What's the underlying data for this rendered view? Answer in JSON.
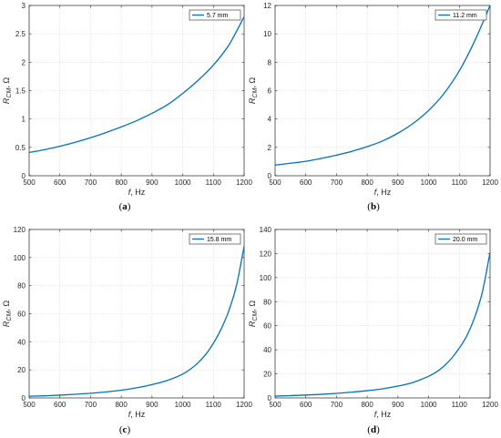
{
  "colors": {
    "series": "#0072BD",
    "axis": "#262626",
    "grid": "#dcdcdc"
  },
  "chart_data": [
    {
      "type": "line",
      "panel_label": "(a)",
      "xlabel": "f, Hz",
      "ylabel": "R_CM, Ω",
      "xlim": [
        500,
        1200
      ],
      "ylim": [
        0,
        3
      ],
      "xticks": [
        500,
        600,
        700,
        800,
        900,
        1000,
        1100,
        1200
      ],
      "yticks": [
        0,
        0.5,
        1,
        1.5,
        2,
        2.5,
        3
      ],
      "grid": true,
      "legend_position": "top-right",
      "series": [
        {
          "name": "5.7 mm",
          "x": [
            500,
            550,
            600,
            650,
            700,
            750,
            800,
            850,
            900,
            950,
            1000,
            1050,
            1100,
            1150,
            1200
          ],
          "y": [
            0.41,
            0.46,
            0.52,
            0.59,
            0.67,
            0.76,
            0.86,
            0.97,
            1.1,
            1.25,
            1.45,
            1.68,
            1.95,
            2.3,
            2.8
          ]
        }
      ]
    },
    {
      "type": "line",
      "panel_label": "(b)",
      "xlabel": "f, Hz",
      "ylabel": "R_CM, Ω",
      "xlim": [
        500,
        1200
      ],
      "ylim": [
        0,
        12
      ],
      "xticks": [
        500,
        600,
        700,
        800,
        900,
        1000,
        1100,
        1200
      ],
      "yticks": [
        0,
        2,
        4,
        6,
        8,
        10,
        12
      ],
      "grid": true,
      "legend_position": "top-right",
      "series": [
        {
          "name": "11.2 mm",
          "x": [
            500,
            550,
            600,
            650,
            700,
            750,
            800,
            850,
            900,
            950,
            1000,
            1050,
            1100,
            1150,
            1200
          ],
          "y": [
            0.75,
            0.88,
            1.02,
            1.22,
            1.45,
            1.72,
            2.05,
            2.45,
            3.0,
            3.7,
            4.6,
            5.8,
            7.4,
            9.5,
            12.0
          ]
        }
      ]
    },
    {
      "type": "line",
      "panel_label": "(c)",
      "xlabel": "f, Hz",
      "ylabel": "R_CM, Ω",
      "xlim": [
        500,
        1200
      ],
      "ylim": [
        0,
        120
      ],
      "xticks": [
        500,
        600,
        700,
        800,
        900,
        1000,
        1100,
        1200
      ],
      "yticks": [
        0,
        20,
        40,
        60,
        80,
        100,
        120
      ],
      "grid": true,
      "legend_position": "top-right",
      "series": [
        {
          "name": "15.8 mm",
          "x": [
            500,
            550,
            600,
            650,
            700,
            750,
            800,
            850,
            900,
            950,
            1000,
            1025,
            1050,
            1075,
            1100,
            1125,
            1150,
            1175,
            1200
          ],
          "y": [
            1.2,
            1.5,
            2.0,
            2.6,
            3.3,
            4.3,
            5.5,
            7.2,
            9.5,
            12.5,
            17.0,
            20.5,
            25.0,
            31.0,
            39.0,
            49.0,
            62.0,
            80.0,
            108.0
          ]
        }
      ]
    },
    {
      "type": "line",
      "panel_label": "(d)",
      "xlabel": "f, Hz",
      "ylabel": "R_CM, Ω",
      "xlim": [
        500,
        1200
      ],
      "ylim": [
        0,
        140
      ],
      "xticks": [
        500,
        600,
        700,
        800,
        900,
        1000,
        1100,
        1200
      ],
      "yticks": [
        0,
        20,
        40,
        60,
        80,
        100,
        120,
        140
      ],
      "grid": true,
      "legend_position": "top-right",
      "series": [
        {
          "name": "20.0 mm",
          "x": [
            500,
            550,
            600,
            650,
            700,
            750,
            800,
            850,
            900,
            950,
            1000,
            1025,
            1050,
            1075,
            1100,
            1125,
            1150,
            1175,
            1200
          ],
          "y": [
            1.5,
            1.9,
            2.4,
            3.0,
            3.8,
            4.8,
            6.0,
            7.6,
            9.8,
            13.0,
            18.0,
            21.5,
            26.5,
            33.0,
            41.5,
            52.0,
            67.0,
            88.0,
            121.0
          ]
        }
      ]
    }
  ]
}
